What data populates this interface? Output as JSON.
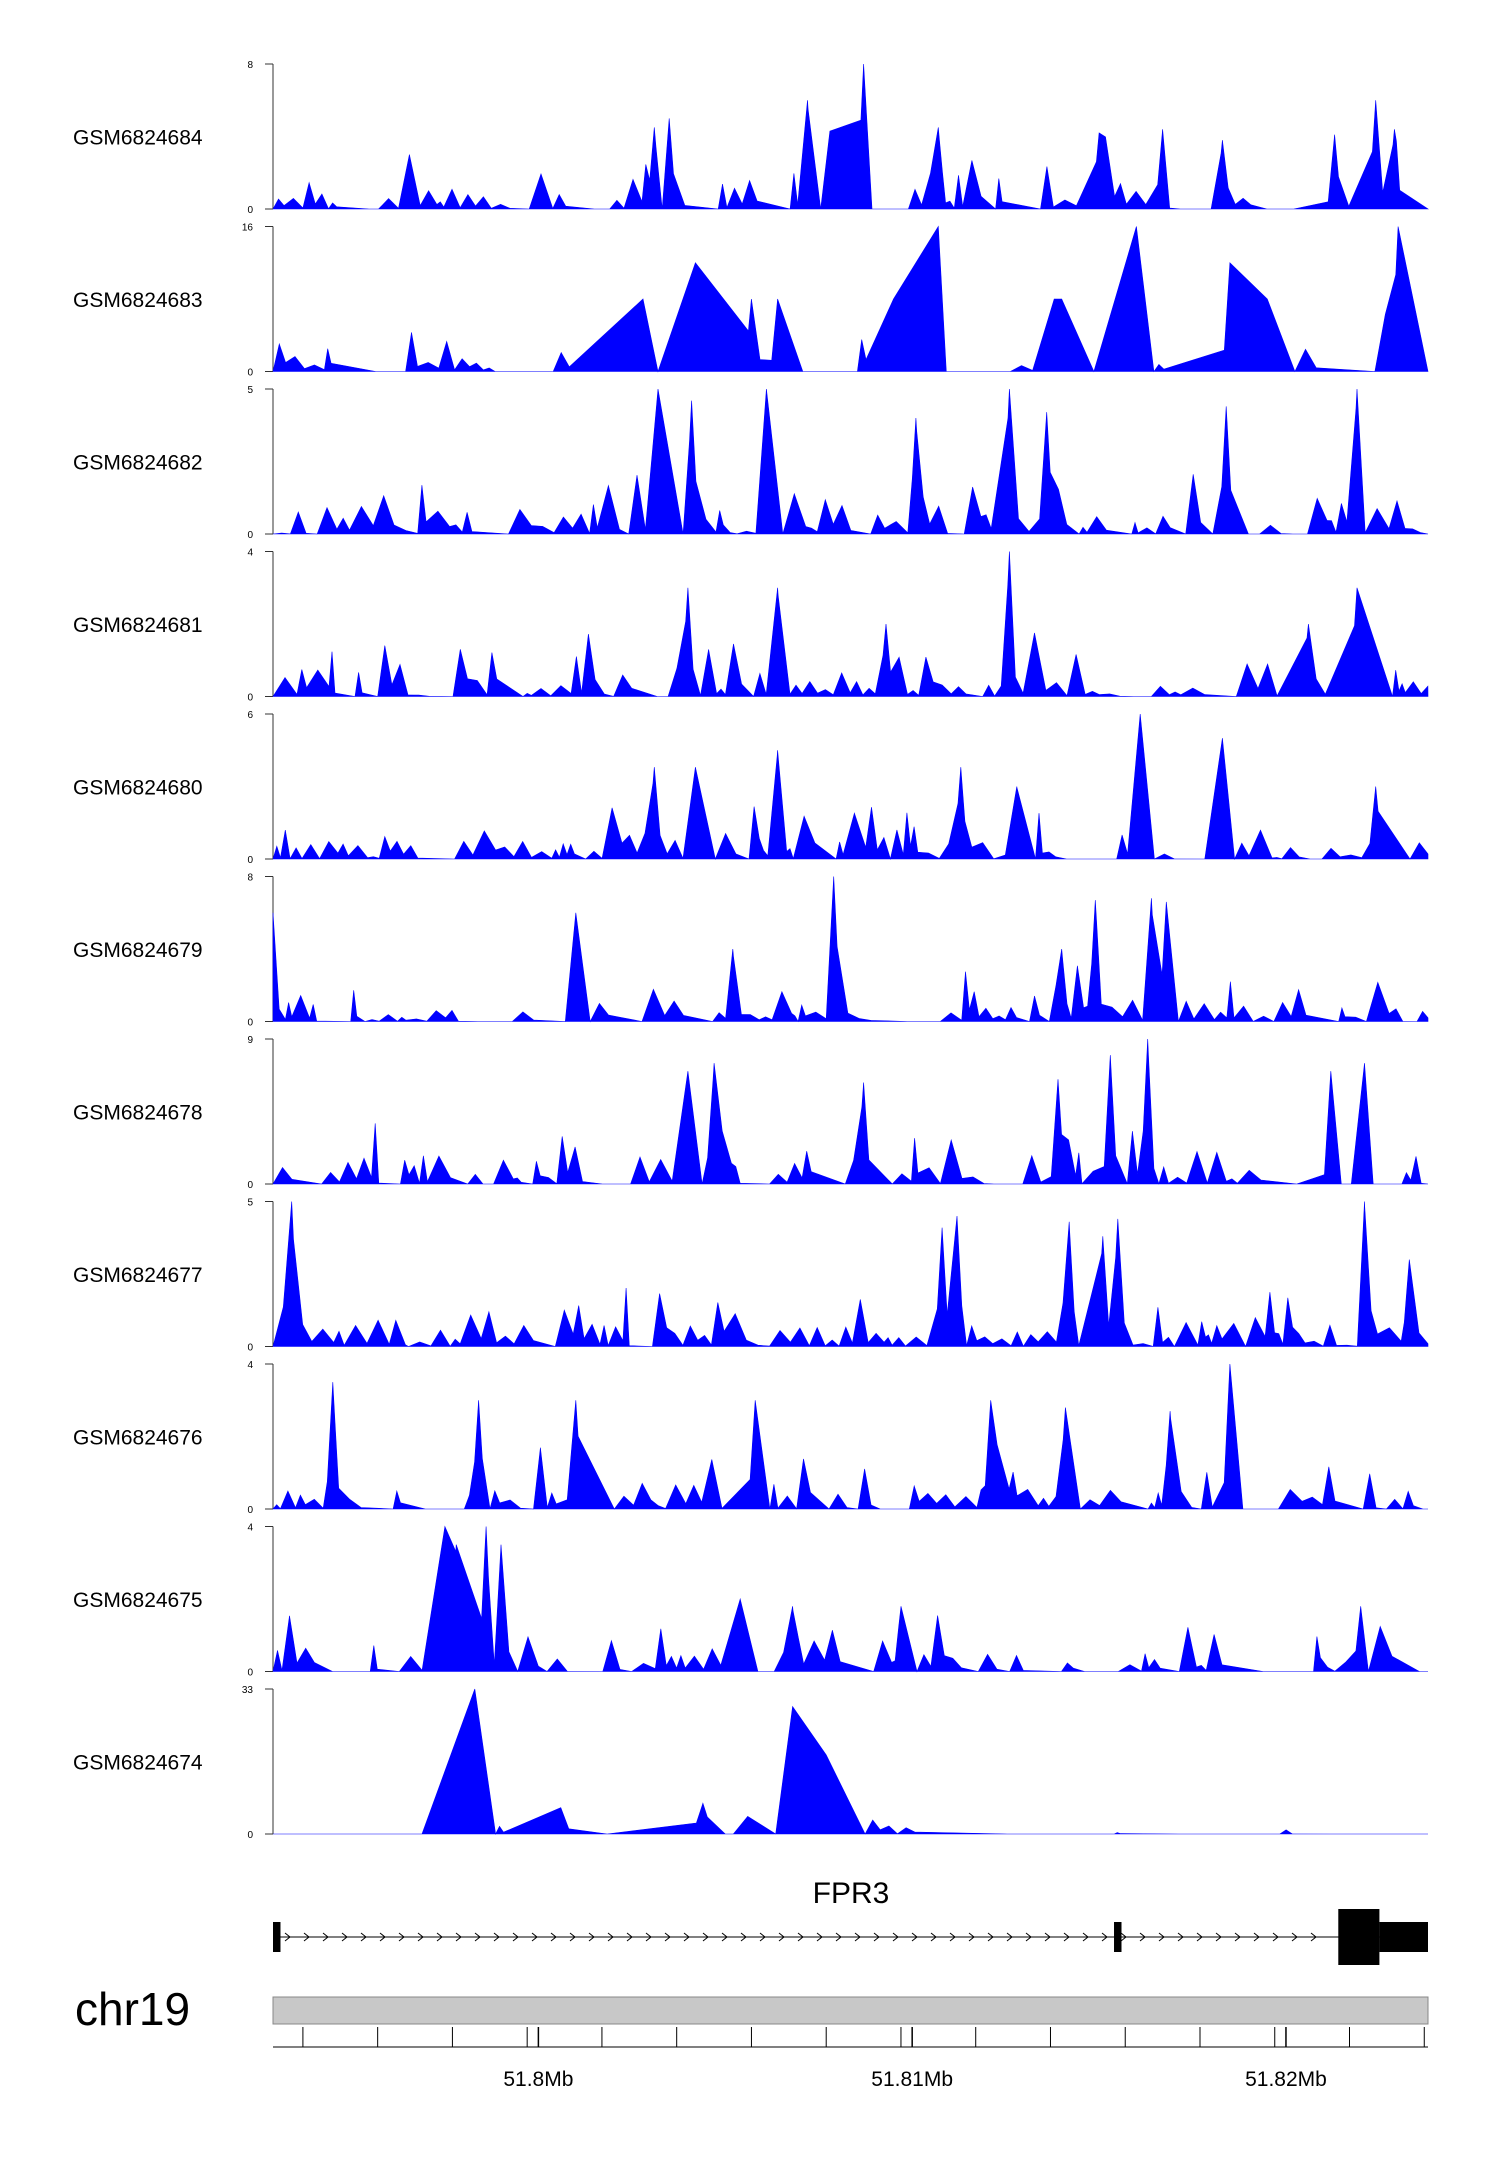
{
  "chart_data": {
    "type": "area",
    "chromosome": "chr19",
    "x_range_mb": [
      51.7929,
      51.8238
    ],
    "coordinate_ticks": [
      {
        "position_mb": 51.8,
        "label": "51.8Mb"
      },
      {
        "position_mb": 51.81,
        "label": "51.81Mb"
      },
      {
        "position_mb": 51.82,
        "label": "51.82Mb"
      }
    ],
    "gene": {
      "name": "FPR3",
      "strand": "+",
      "start_mb": 51.7929,
      "end_mb": 51.8238,
      "exons": [
        {
          "start_mb": 51.7929,
          "end_mb": 51.7931,
          "type": "utr"
        },
        {
          "start_mb": 51.8154,
          "end_mb": 51.8156,
          "type": "utr"
        },
        {
          "start_mb": 51.8214,
          "end_mb": 51.8225,
          "type": "cds"
        },
        {
          "start_mb": 51.8225,
          "end_mb": 51.8238,
          "type": "utr"
        }
      ]
    },
    "fill_color": "#0000ff",
    "series": [
      {
        "name": "GSM6824684",
        "ymax": 8,
        "ymin": 0,
        "seed": 11,
        "density": 0.9,
        "peaks": [
          [
            51.8087,
            8.0
          ],
          [
            51.8072,
            6.0
          ],
          [
            51.8224,
            6.0
          ],
          [
            51.8035,
            5.0
          ],
          [
            51.8031,
            4.5
          ],
          [
            51.8078,
            4.3
          ],
          [
            51.815,
            4.2
          ],
          [
            51.8167,
            4.4
          ],
          [
            51.8213,
            4.1
          ],
          [
            51.8229,
            4.4
          ],
          [
            51.8107,
            4.5
          ],
          [
            51.8183,
            3.8
          ]
        ]
      },
      {
        "name": "GSM6824683",
        "ymax": 16,
        "ymin": 0,
        "seed": 23,
        "density": 0.35,
        "peaks": [
          [
            51.8107,
            16.0
          ],
          [
            51.816,
            16.0
          ],
          [
            51.823,
            16.0
          ],
          [
            51.8042,
            12.0
          ],
          [
            51.8185,
            12.0
          ],
          [
            51.8195,
            8.0
          ],
          [
            51.8064,
            8.0
          ],
          [
            51.8095,
            8.0
          ],
          [
            51.8057,
            8.0
          ],
          [
            51.8028,
            8.0
          ],
          [
            51.8138,
            8.0
          ],
          [
            51.814,
            8.0
          ]
        ]
      },
      {
        "name": "GSM6824682",
        "ymax": 5,
        "ymin": 0,
        "seed": 37,
        "density": 1.0,
        "peaks": [
          [
            51.8032,
            5.0
          ],
          [
            51.8061,
            5.0
          ],
          [
            51.8126,
            5.0
          ],
          [
            51.8219,
            5.0
          ],
          [
            51.8041,
            4.6
          ],
          [
            51.8101,
            4.0
          ],
          [
            51.8136,
            4.2
          ],
          [
            51.8184,
            4.4
          ]
        ]
      },
      {
        "name": "GSM6824681",
        "ymax": 4,
        "ymin": 0,
        "seed": 41,
        "density": 0.95,
        "peaks": [
          [
            51.8126,
            4.0
          ],
          [
            51.804,
            3.0
          ],
          [
            51.8064,
            3.0
          ],
          [
            51.8219,
            3.0
          ],
          [
            51.8093,
            2.0
          ],
          [
            51.8206,
            2.0
          ]
        ]
      },
      {
        "name": "GSM6824680",
        "ymax": 6,
        "ymin": 0,
        "seed": 53,
        "density": 1.0,
        "peaks": [
          [
            51.8183,
            5.0
          ],
          [
            51.8161,
            6.0
          ],
          [
            51.8064,
            4.5
          ],
          [
            51.8042,
            3.8
          ],
          [
            51.8113,
            3.8
          ],
          [
            51.8031,
            3.8
          ],
          [
            51.8128,
            3.0
          ],
          [
            51.8224,
            3.0
          ]
        ]
      },
      {
        "name": "GSM6824679",
        "ymax": 8,
        "ymin": 0,
        "seed": 67,
        "density": 1.0,
        "peaks": [
          [
            51.8079,
            8.0
          ],
          [
            51.8164,
            6.8
          ],
          [
            51.8149,
            6.7
          ],
          [
            51.8168,
            6.6
          ],
          [
            51.801,
            6.0
          ],
          [
            51.7929,
            6.0
          ],
          [
            51.8052,
            4.0
          ],
          [
            51.814,
            4.0
          ]
        ]
      },
      {
        "name": "GSM6824678",
        "ymax": 9,
        "ymin": 0,
        "seed": 71,
        "density": 0.95,
        "peaks": [
          [
            51.8163,
            9.0
          ],
          [
            51.8153,
            8.0
          ],
          [
            51.8047,
            7.5
          ],
          [
            51.8212,
            7.0
          ],
          [
            51.8221,
            7.5
          ],
          [
            51.804,
            7.0
          ],
          [
            51.8087,
            6.3
          ],
          [
            51.8139,
            6.5
          ]
        ]
      },
      {
        "name": "GSM6824677",
        "ymax": 5,
        "ymin": 0,
        "seed": 83,
        "density": 1.2,
        "peaks": [
          [
            51.7934,
            5.0
          ],
          [
            51.8112,
            4.5
          ],
          [
            51.8221,
            5.0
          ],
          [
            51.8155,
            4.4
          ],
          [
            51.8142,
            4.3
          ],
          [
            51.8108,
            4.1
          ],
          [
            51.8151,
            3.8
          ],
          [
            51.8233,
            3.0
          ]
        ]
      },
      {
        "name": "GSM6824676",
        "ymax": 4,
        "ymin": 0,
        "seed": 97,
        "density": 1.0,
        "peaks": [
          [
            51.8185,
            4.0
          ],
          [
            51.7945,
            3.5
          ],
          [
            51.801,
            3.0
          ],
          [
            51.8058,
            3.0
          ],
          [
            51.8121,
            3.0
          ],
          [
            51.8141,
            2.8
          ],
          [
            51.8169,
            2.7
          ],
          [
            51.7984,
            3.0
          ]
        ]
      },
      {
        "name": "GSM6824675",
        "ymax": 4,
        "ymin": 0,
        "seed": 109,
        "density": 0.9,
        "peaks": [
          [
            51.7975,
            4.0
          ],
          [
            51.7978,
            3.5
          ],
          [
            51.7986,
            4.0
          ],
          [
            51.799,
            3.5
          ],
          [
            51.8054,
            2.0
          ],
          [
            51.8068,
            1.8
          ],
          [
            51.8097,
            1.8
          ],
          [
            51.822,
            1.8
          ]
        ]
      },
      {
        "name": "GSM6824674",
        "ymax": 33,
        "ymin": 0,
        "seed": 131,
        "density": 0.25,
        "peaks": [
          [
            51.7983,
            33.0
          ],
          [
            51.8068,
            29.0
          ],
          [
            51.8077,
            18.0
          ],
          [
            51.8044,
            7.0
          ],
          [
            51.8006,
            6.0
          ],
          [
            51.8056,
            4.0
          ]
        ]
      }
    ]
  }
}
